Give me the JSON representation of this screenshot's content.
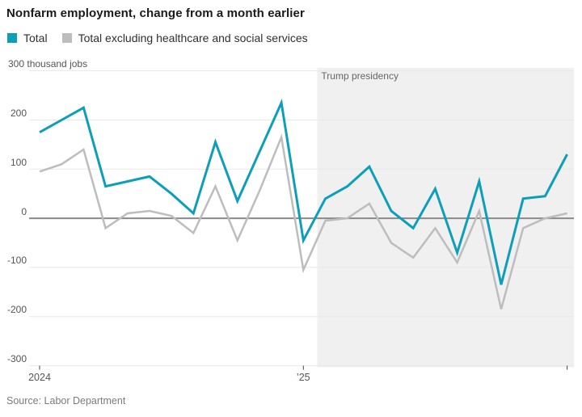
{
  "chart_data": {
    "type": "line",
    "title": "Nonfarm employment, change from a month earlier",
    "unit": "thousand jobs",
    "x_months": [
      "Jan 2024",
      "Feb 2024",
      "Mar 2024",
      "Apr 2024",
      "May 2024",
      "Jun 2024",
      "Jul 2024",
      "Aug 2024",
      "Sep 2024",
      "Oct 2024",
      "Nov 2024",
      "Dec 2024",
      "Jan 2025",
      "Feb 2025",
      "Mar 2025",
      "Apr 2025",
      "May 2025",
      "Jun 2025",
      "Jul 2025",
      "Aug 2025",
      "Sep 2025",
      "Oct 2025",
      "Nov 2025",
      "Dec 2025",
      "Jan 2026"
    ],
    "series": [
      {
        "name": "Total",
        "color": "#0d9fba",
        "values": [
          175,
          200,
          225,
          65,
          75,
          85,
          50,
          10,
          155,
          35,
          135,
          235,
          -45,
          40,
          65,
          105,
          15,
          -20,
          60,
          -70,
          75,
          -135,
          40,
          45,
          130
        ]
      },
      {
        "name": "Total excluding healthcare and social services",
        "color": "#bdbdbd",
        "values": [
          95,
          110,
          140,
          -20,
          10,
          15,
          5,
          -30,
          65,
          -45,
          55,
          165,
          -105,
          -5,
          0,
          30,
          -50,
          -80,
          -20,
          -90,
          15,
          -185,
          -20,
          0,
          10
        ]
      }
    ],
    "ylim": [
      -300,
      300
    ],
    "yticks": [
      {
        "v": 300,
        "label": "300 thousand jobs",
        "align": "left"
      },
      {
        "v": 200,
        "label": "200"
      },
      {
        "v": 100,
        "label": "100"
      },
      {
        "v": 0,
        "label": "0"
      },
      {
        "v": -100,
        "label": "-100"
      },
      {
        "v": -200,
        "label": "-200"
      },
      {
        "v": -300,
        "label": "-300"
      }
    ],
    "xticks": [
      {
        "label": "2024",
        "month_index": 0
      },
      {
        "label": "’25",
        "month_index": 12
      },
      {
        "label": "",
        "month_index": 24
      }
    ],
    "annotation": {
      "label": "Trump presidency",
      "start_month_index": 12.63
    },
    "grid": "horizontal",
    "legend_position": "top-left",
    "colors": {
      "region_fill": "#f0f0f1",
      "gridline": "#e8e8e8",
      "zero_line": "#8a8a8a",
      "tick_mark": "#444444"
    }
  },
  "source": "Source: Labor Department"
}
